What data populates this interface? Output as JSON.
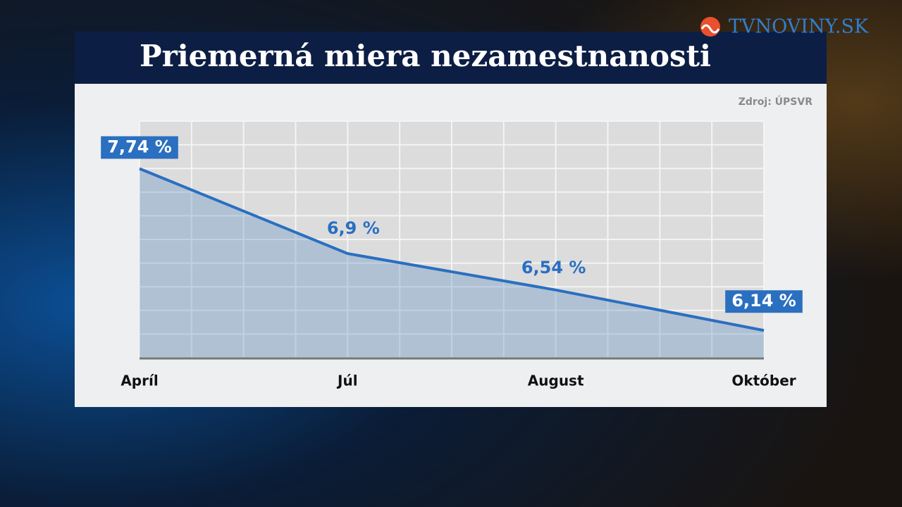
{
  "brand": "TVNOVINY.SK",
  "chart_data": {
    "type": "area",
    "title": "Priemerná miera nezamestnanosti",
    "source": "Zdroj: ÚPSVR",
    "categories": [
      "Apríl",
      "Júl",
      "August",
      "Október"
    ],
    "values": [
      7.74,
      6.9,
      6.54,
      6.14
    ],
    "value_labels": [
      "7,74 %",
      "6,9 %",
      "6,54 %",
      "6,14 %"
    ],
    "color": "#2a6fc0",
    "ylim": [
      5.87,
      8.21
    ],
    "grid": true
  }
}
